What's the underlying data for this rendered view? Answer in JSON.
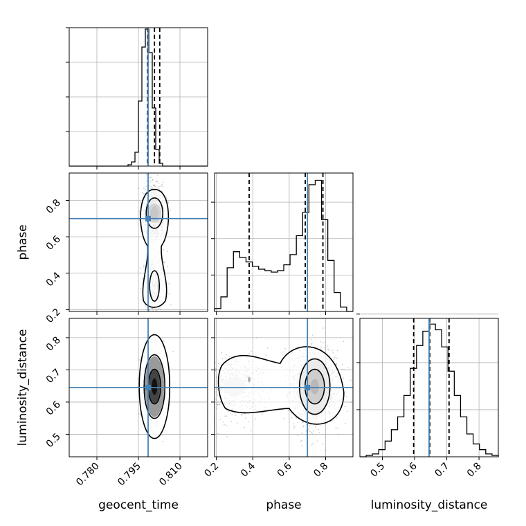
{
  "chart_data": {
    "type": "scatter",
    "kind": "corner-plot",
    "parameters": [
      "geocent_time",
      "phase",
      "luminosity_distance"
    ],
    "truths": {
      "geocent_time": 0.7985,
      "phase": 0.7,
      "luminosity_distance": 0.645
    },
    "colors": {
      "truth": "#4682b4",
      "hist": "#000000",
      "grid": "#b0b0b0",
      "points": "#6f6f6f"
    },
    "grid": true,
    "axes": {
      "geocent_time": {
        "range": [
          0.77,
          0.82
        ],
        "ticks": [
          0.78,
          0.795,
          0.81
        ],
        "tick_labels": [
          "0.780",
          "0.795",
          "0.810"
        ],
        "xlabel": "geocent_time"
      },
      "phase": {
        "range": [
          0.19,
          0.95
        ],
        "ticks_x": [
          0.2,
          0.4,
          0.6,
          0.8
        ],
        "tick_labels_x": [
          "0.2",
          "0.4",
          "0.6",
          "0.8"
        ],
        "ticks_y": [
          0.2,
          0.4,
          0.6,
          0.8
        ],
        "tick_labels_y": [
          "0.2",
          "0.4",
          "0.6",
          "0.8"
        ],
        "xlabel": "phase",
        "ylabel": "phase"
      },
      "luminosity_distance": {
        "range": [
          0.43,
          0.86
        ],
        "ticks_x": [
          0.5,
          0.6,
          0.7,
          0.8
        ],
        "tick_labels_x": [
          "0.5",
          "0.6",
          "0.7",
          "0.8"
        ],
        "ticks_y": [
          0.5,
          0.6,
          0.7,
          0.8
        ],
        "tick_labels_y": [
          "0.5",
          "0.6",
          "0.7",
          "0.8"
        ],
        "xlabel": "luminosity_distance",
        "ylabel": "luminosity_distance"
      }
    },
    "histograms": {
      "geocent_time": {
        "range": [
          0.77,
          0.82
        ],
        "ymax": 1.0,
        "counts": [
          0,
          0,
          0,
          0,
          0,
          0,
          0,
          0,
          0,
          0,
          0,
          0,
          0,
          0,
          0,
          0,
          0,
          0.01,
          0.03,
          0.1,
          0.47,
          0.86,
          0.99,
          0.82,
          0.42,
          0.12,
          0.02,
          0,
          0,
          0,
          0,
          0,
          0,
          0,
          0,
          0,
          0,
          0,
          0,
          0
        ],
        "quantiles": [
          0.7983,
          0.8008,
          0.8027
        ],
        "ticks": [
          0.25,
          0.5,
          0.75,
          1.0
        ]
      },
      "phase": {
        "range": [
          0.19,
          0.95
        ],
        "ymax": 0.95,
        "counts": [
          0.02,
          0.1,
          0.3,
          0.41,
          0.37,
          0.34,
          0.31,
          0.29,
          0.28,
          0.27,
          0.28,
          0.32,
          0.39,
          0.52,
          0.68,
          0.87,
          0.9,
          0.63,
          0.35,
          0.13,
          0.03,
          0.0
        ],
        "quantiles": [
          0.38,
          0.688,
          0.785
        ],
        "ticks": [
          0.25,
          0.5,
          0.75
        ]
      },
      "luminosity_distance": {
        "range": [
          0.43,
          0.86
        ],
        "ymax": 0.97,
        "counts": [
          0.0,
          0.01,
          0.02,
          0.05,
          0.11,
          0.19,
          0.28,
          0.43,
          0.62,
          0.78,
          0.88,
          0.93,
          0.89,
          0.77,
          0.6,
          0.43,
          0.28,
          0.16,
          0.09,
          0.05,
          0.02,
          0.01
        ],
        "quantiles": [
          0.597,
          0.647,
          0.707
        ],
        "ticks": [
          0.33,
          0.66,
          1.0
        ]
      }
    },
    "posteriors_2d": [
      {
        "x": "geocent_time",
        "y": "phase",
        "x_mean": 0.8008,
        "x_sd": 0.00185,
        "y_modes": [
          [
            0.73,
            0.07,
            0.72
          ],
          [
            0.33,
            0.09,
            0.28
          ]
        ],
        "n_points": 1300
      },
      {
        "x": "geocent_time",
        "y": "luminosity_distance",
        "x_mean": 0.8008,
        "x_sd": 0.00185,
        "y_mean": 0.648,
        "y_sd": 0.05,
        "n_points": 1300
      },
      {
        "x": "phase",
        "y": "luminosity_distance",
        "x_modes": [
          [
            0.74,
            0.065,
            0.72
          ],
          [
            0.3,
            0.09,
            0.28
          ]
        ],
        "y_mean": 0.648,
        "y_sd": 0.055,
        "n_points": 1600
      }
    ]
  }
}
